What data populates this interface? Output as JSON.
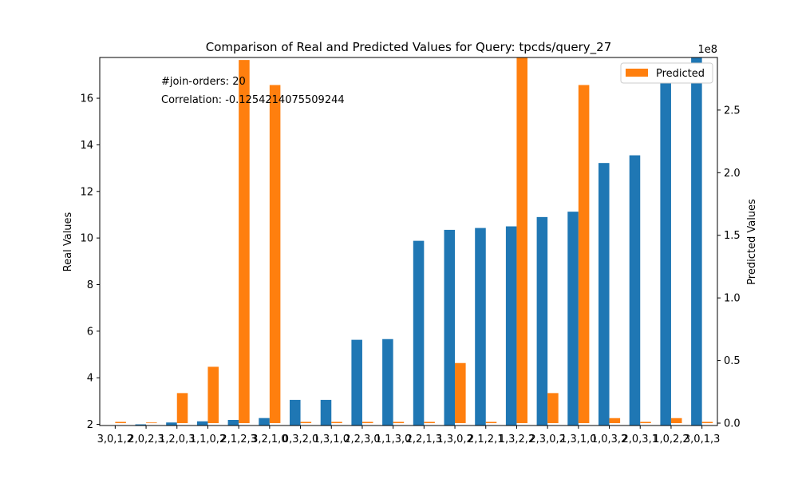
{
  "chart_data": {
    "type": "bar",
    "title": "Comparison of Real and Predicted Values for Query: tpcds/query_27",
    "ylabel_left": "Real Values",
    "ylabel_right": "Predicted Values",
    "right_axis_multiplier": "1e8",
    "categories": [
      "3,0,1,2",
      "0,2,3,1",
      "2,0,3,1",
      "1,0,3,2",
      "1,2,3,0",
      "2,1,0,3",
      "0,3,2,1",
      "3,1,0,2",
      "2,3,0,1",
      "1,3,0,2",
      "2,1,3,0",
      "3,0,2,1",
      "2,1,3,0",
      "3,2,0,1",
      "3,0,2,1",
      "3,1,0,2",
      "0,3,2,1",
      "0,3,1,2",
      "2,3,1,0",
      "0,1,3,2"
    ],
    "tick_labels": [
      "3,0,1,2",
      "2,0,2,3",
      "1,2,0,3",
      "1,1,0,2",
      "2,1,2,3",
      "3,2,1,0",
      "0,3,2,0",
      "1,3,1,0",
      "2,2,3,0",
      "1,1,3,0",
      "2,2,1,3",
      "1,3,0,2",
      "2,1,2,1",
      "1,3,2,2",
      "2,3,0,2",
      "1,3,1,0",
      "1,0,3,2",
      "2,0,3,1",
      "1,0,2,2",
      "3,0,1,3"
    ],
    "series": [
      {
        "name": "Real",
        "axis": "left",
        "color": "#1f77b4",
        "values": [
          1.95,
          2.0,
          2.08,
          2.13,
          2.19,
          2.27,
          3.05,
          3.05,
          5.63,
          5.66,
          9.88,
          10.35,
          10.43,
          10.5,
          10.9,
          11.13,
          13.22,
          13.55,
          17.5,
          17.8
        ]
      },
      {
        "name": "Predicted",
        "axis": "right",
        "color": "#ff7f0e",
        "values": [
          1000000,
          500000,
          24000000,
          45000000,
          290000000,
          270000000,
          1000000,
          1000000,
          1000000,
          1000000,
          1000000,
          48000000,
          1000000,
          300000000,
          24000000,
          270000000,
          4000000,
          1000000,
          4000000,
          1000000
        ]
      }
    ],
    "ylim_left": [
      1.95,
      17.75
    ],
    "ylim_right": [
      -1900000,
      292000000
    ],
    "yticks_left": [
      2,
      4,
      6,
      8,
      10,
      12,
      14,
      16
    ],
    "yticks_right": [
      0.0,
      0.5,
      1.0,
      1.5,
      2.0,
      2.5
    ],
    "legend": {
      "position": "top-right",
      "entries": [
        "Predicted"
      ]
    },
    "annotations": [
      "#join-orders: 20",
      "Correlation: -0.12542140755092​44"
    ],
    "grid": false
  }
}
